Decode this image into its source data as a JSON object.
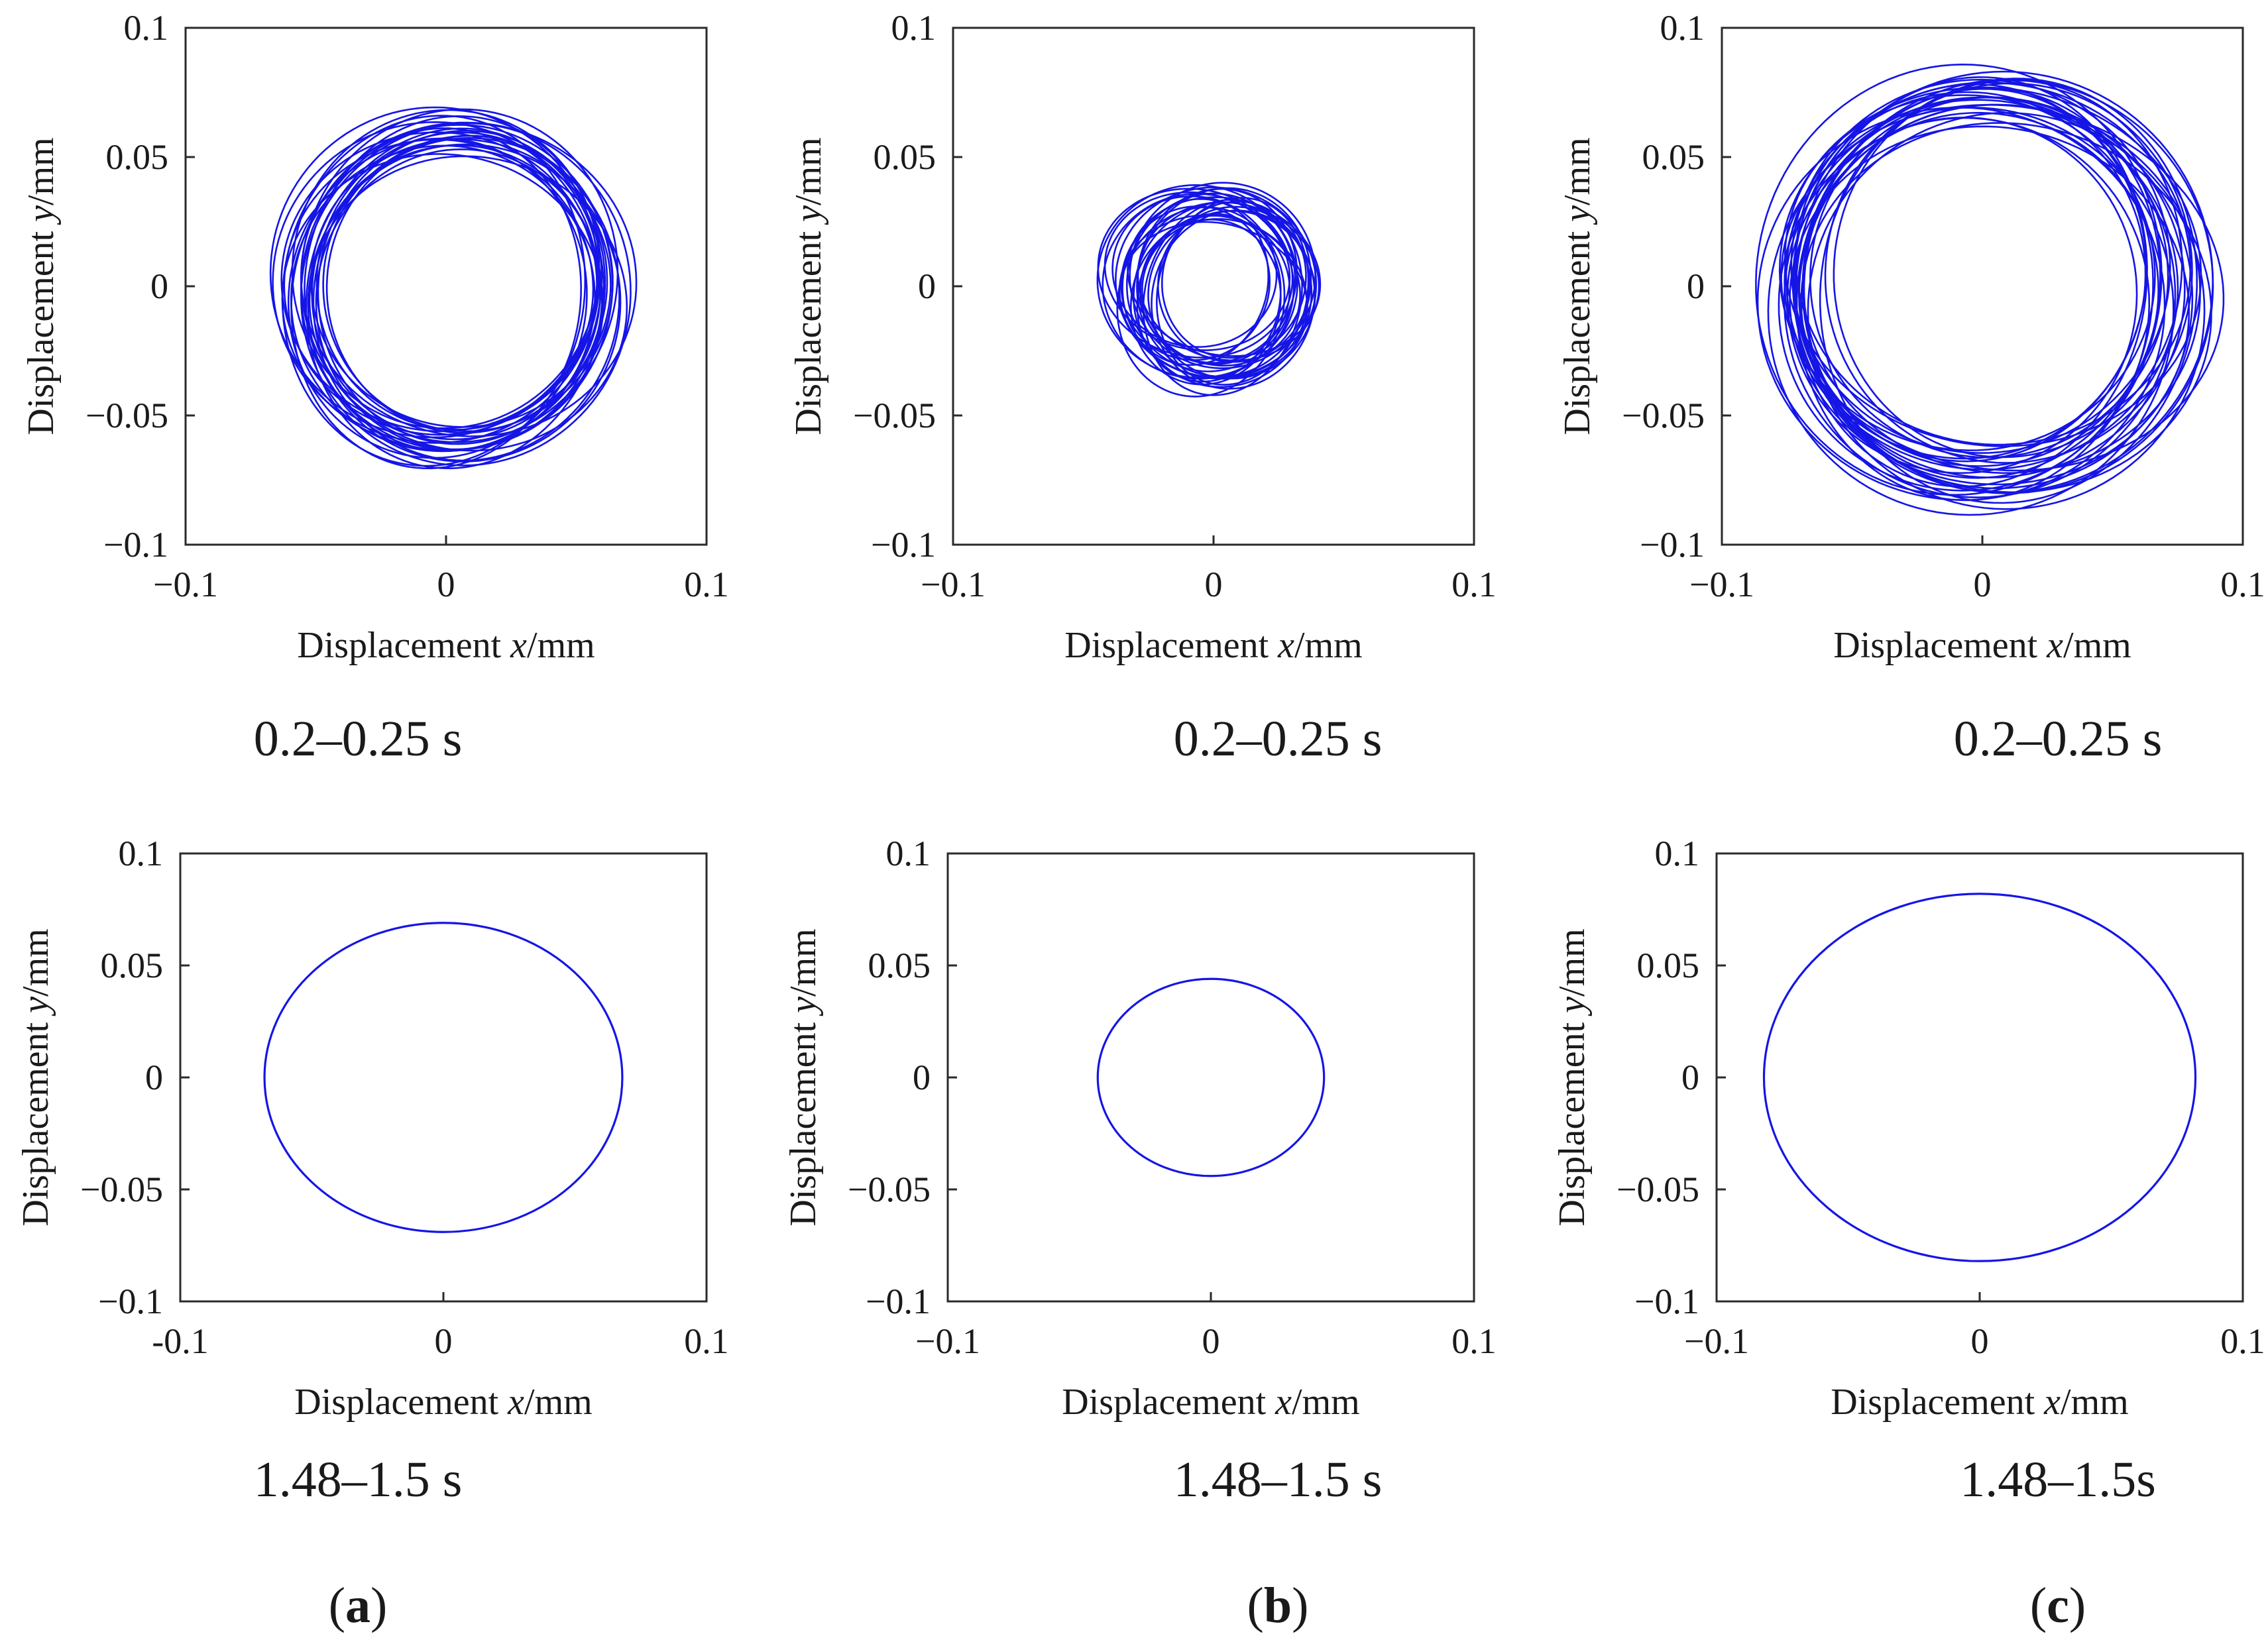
{
  "chart_data": [
    {
      "type": "orbit",
      "id": "a-top",
      "xlabel_prefix": "Displacement ",
      "xlabel_var": "x",
      "xlabel_unit": "/mm",
      "ylabel_prefix": "Displacement ",
      "ylabel_var": "y",
      "ylabel_unit": "/mm",
      "xlim": [
        -0.1,
        0.1
      ],
      "ylim": [
        -0.1,
        0.1
      ],
      "xticks": [
        "−0.1",
        "0",
        "0.1"
      ],
      "yticks": [
        "−0.1",
        "−0.05",
        "0",
        "0.05",
        "0.1"
      ],
      "time_label": "0.2–0.25 s",
      "color": "#1515e6",
      "transient": true,
      "orbit": {
        "cx": 0.002,
        "cy": 0.0,
        "rx_min": 0.057,
        "rx_max": 0.072,
        "ry_min": 0.059,
        "ry_max": 0.075,
        "rotation_deg": -25,
        "loops": 26
      }
    },
    {
      "type": "orbit",
      "id": "b-top",
      "xlabel_prefix": "Displacement ",
      "xlabel_var": "x",
      "xlabel_unit": "/mm",
      "ylabel_prefix": "Displacement ",
      "ylabel_var": "y",
      "ylabel_unit": "/mm",
      "xlim": [
        -0.1,
        0.1
      ],
      "ylim": [
        -0.1,
        0.1
      ],
      "xticks": [
        "−0.1",
        "0",
        "0.1"
      ],
      "yticks": [
        "−0.1",
        "−0.05",
        "0",
        "0.05",
        "0.1"
      ],
      "time_label": "0.2–0.25 s",
      "color": "#1515e6",
      "transient": true,
      "orbit": {
        "cx": 0.0,
        "cy": 0.0,
        "rx_min": 0.03,
        "rx_max": 0.048,
        "ry_min": 0.032,
        "ry_max": 0.046,
        "rotation_deg": -35,
        "loops": 28
      }
    },
    {
      "type": "orbit",
      "id": "c-top",
      "xlabel_prefix": "Displacement ",
      "xlabel_var": "x",
      "xlabel_unit": "/mm",
      "ylabel_prefix": "Displacement ",
      "ylabel_var": "y",
      "ylabel_unit": "/mm",
      "xlim": [
        -0.1,
        0.1
      ],
      "ylim": [
        -0.1,
        0.1
      ],
      "xticks": [
        "−0.1",
        "0",
        "0.1"
      ],
      "yticks": [
        "−0.1",
        "−0.05",
        "0",
        "0.05",
        "0.1"
      ],
      "time_label": "0.2–0.25 s",
      "color": "#1515e6",
      "transient": true,
      "orbit": {
        "cx": 0.0,
        "cy": 0.0,
        "rx_min": 0.07,
        "rx_max": 0.093,
        "ry_min": 0.072,
        "ry_max": 0.094,
        "rotation_deg": -25,
        "loops": 30
      }
    },
    {
      "type": "orbit",
      "id": "a-bottom",
      "xlabel_prefix": "Displacement ",
      "xlabel_var": "x",
      "xlabel_unit": "/mm",
      "ylabel_prefix": "Displacement ",
      "ylabel_var": "y",
      "ylabel_unit": "/mm",
      "xlim": [
        -0.1,
        0.1
      ],
      "ylim": [
        -0.1,
        0.1
      ],
      "xticks": [
        "-0.1",
        "0",
        "0.1"
      ],
      "yticks": [
        "−0.1",
        "−0.05",
        "0",
        "0.05",
        "0.1"
      ],
      "time_label": "1.48–1.5 s",
      "color": "#1515e6",
      "transient": false,
      "orbit": {
        "cx": 0.0,
        "cy": 0.0,
        "rx": 0.068,
        "ry": 0.069
      }
    },
    {
      "type": "orbit",
      "id": "b-bottom",
      "xlabel_prefix": "Displacement ",
      "xlabel_var": "x",
      "xlabel_unit": "/mm",
      "ylabel_prefix": "Displacement ",
      "ylabel_var": "y",
      "ylabel_unit": "/mm",
      "xlim": [
        -0.1,
        0.1
      ],
      "ylim": [
        -0.1,
        0.1
      ],
      "xticks": [
        "−0.1",
        "0",
        "0.1"
      ],
      "yticks": [
        "−0.1",
        "−0.05",
        "0",
        "0.05",
        "0.1"
      ],
      "time_label": "1.48–1.5 s",
      "color": "#1515e6",
      "transient": false,
      "orbit": {
        "cx": 0.0,
        "cy": 0.0,
        "rx": 0.043,
        "ry": 0.044
      }
    },
    {
      "type": "orbit",
      "id": "c-bottom",
      "xlabel_prefix": "Displacement ",
      "xlabel_var": "x",
      "xlabel_unit": "/mm",
      "ylabel_prefix": "Displacement ",
      "ylabel_var": "y",
      "ylabel_unit": "/mm",
      "xlim": [
        -0.1,
        0.1
      ],
      "ylim": [
        -0.1,
        0.1
      ],
      "xticks": [
        "−0.1",
        "0",
        "0.1"
      ],
      "yticks": [
        "−0.1",
        "−0.05",
        "0",
        "0.05",
        "0.1"
      ],
      "time_label": "1.48–1.5s",
      "color": "#1515e6",
      "transient": false,
      "orbit": {
        "cx": 0.0,
        "cy": 0.0,
        "rx": 0.082,
        "ry": 0.082
      }
    }
  ],
  "panel_labels": [
    {
      "paren_open": "(",
      "letter": "a",
      "paren_close": ")"
    },
    {
      "paren_open": "(",
      "letter": "b",
      "paren_close": ")"
    },
    {
      "paren_open": "(",
      "letter": "c",
      "paren_close": ")"
    }
  ]
}
